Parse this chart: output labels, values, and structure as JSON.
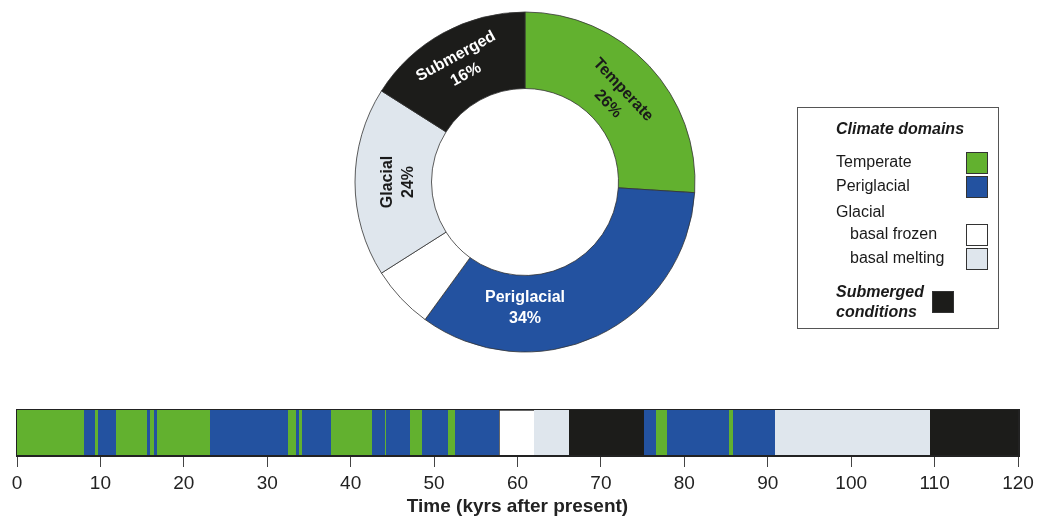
{
  "chart_data": [
    {
      "type": "donut",
      "legend_title": "Climate domains",
      "legend": "right",
      "categories": [
        "Temperate",
        "Periglacial",
        "basal frozen",
        "basal melting",
        "Submerged conditions"
      ],
      "values": [
        26,
        34,
        6,
        18,
        16
      ],
      "value_labels": [
        "Temperate\n26%",
        "Periglacial\n34%",
        null,
        "Glacial\n24%",
        "Submerged\n16%"
      ],
      "colors": [
        "#62b12f",
        "#2352a0",
        "#ffffff",
        "#dfe6ed",
        "#1c1c1a"
      ],
      "annotations": [
        "Glacial"
      ]
    },
    {
      "type": "bar",
      "orientation": "horizontal",
      "stacked": true,
      "xlabel": "Time (kyrs after present)",
      "tick_labels": "x",
      "categories": [
        null
      ],
      "xlim": [
        0,
        120
      ],
      "xticks": [
        0,
        10,
        20,
        30,
        40,
        50,
        60,
        70,
        80,
        90,
        100,
        110,
        120
      ],
      "series": [
        {
          "color": "#62b12f",
          "values": [
            8.0
          ]
        },
        {
          "color": "#2352a0",
          "values": [
            1.4
          ]
        },
        {
          "color": "#62b12f",
          "values": [
            0.3
          ]
        },
        {
          "color": "#2352a0",
          "values": [
            2.2
          ]
        },
        {
          "color": "#62b12f",
          "values": [
            3.7
          ]
        },
        {
          "color": "#2352a0",
          "values": [
            0.3
          ]
        },
        {
          "color": "#62b12f",
          "values": [
            0.5
          ]
        },
        {
          "color": "#2352a0",
          "values": [
            0.4
          ]
        },
        {
          "color": "#62b12f",
          "values": [
            6.3
          ]
        },
        {
          "color": "#2352a0",
          "values": [
            9.4
          ]
        },
        {
          "color": "#62b12f",
          "values": [
            0.9
          ]
        },
        {
          "color": "#2352a0",
          "values": [
            0.4
          ]
        },
        {
          "color": "#62b12f",
          "values": [
            0.4
          ]
        },
        {
          "color": "#2352a0",
          "values": [
            3.4
          ]
        },
        {
          "color": "#62b12f",
          "values": [
            5.0
          ]
        },
        {
          "color": "#2352a0",
          "values": [
            1.5
          ]
        },
        {
          "color": "#62b12f",
          "values": [
            0.1
          ]
        },
        {
          "color": "#2352a0",
          "values": [
            2.9
          ]
        },
        {
          "color": "#62b12f",
          "values": [
            1.5
          ]
        },
        {
          "color": "#2352a0",
          "values": [
            3.1
          ]
        },
        {
          "color": "#62b12f",
          "values": [
            0.8
          ]
        },
        {
          "color": "#2352a0",
          "values": [
            5.3
          ]
        },
        {
          "color": "#ffffff",
          "values": [
            4.2
          ]
        },
        {
          "color": "#dfe6ed",
          "values": [
            4.2
          ]
        },
        {
          "color": "#1c1c1a",
          "values": [
            9.0
          ]
        },
        {
          "color": "#2352a0",
          "values": [
            1.4
          ]
        },
        {
          "color": "#62b12f",
          "values": [
            1.3
          ]
        },
        {
          "color": "#2352a0",
          "values": [
            7.5
          ]
        },
        {
          "color": "#62b12f",
          "values": [
            0.4
          ]
        },
        {
          "color": "#2352a0",
          "values": [
            5.1
          ]
        },
        {
          "color": "#dfe6ed",
          "values": [
            18.5
          ]
        },
        {
          "color": "#1c1c1a",
          "values": [
            10.6
          ]
        }
      ]
    }
  ]
}
